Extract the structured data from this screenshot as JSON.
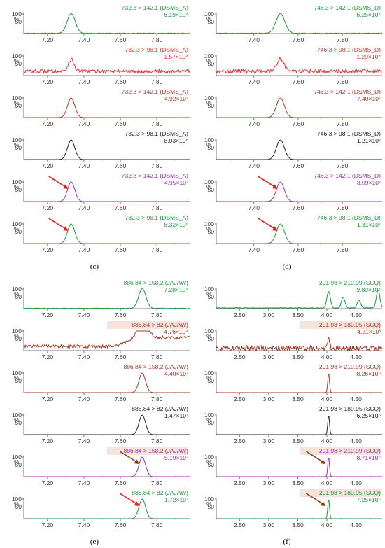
{
  "figure": {
    "panel_labels": [
      {
        "id": "c",
        "text": "(c)"
      },
      {
        "id": "d",
        "text": "(d)"
      },
      {
        "id": "e",
        "text": "(e)"
      },
      {
        "id": "f",
        "text": "(f)"
      }
    ]
  },
  "colors": {
    "green": "#1a9a3a",
    "red": "#e8312f",
    "brown": "#a23a2a",
    "black": "#222222",
    "purple": "#9c2fa8",
    "arrow_red": "#e41b1b",
    "arrow_brown": "#8a3a10",
    "highlight": "#f6e3dc"
  },
  "chart_data": [
    {
      "panel": "c",
      "type": "line",
      "trace": "peak",
      "title": "732.3 > 142.1 (DSMS_A)",
      "intensity": "6.19×10⁴",
      "color": "green",
      "x_ticks": [
        "7.20",
        "7.40",
        "7.60",
        "7.80"
      ],
      "xlim": [
        7.07,
        7.98
      ],
      "y_ticks": [
        "100",
        "50",
        "%"
      ],
      "ylim": [
        0,
        100
      ],
      "peak_rt": 7.33,
      "peak_width": 0.022,
      "noise": 3,
      "arrow": null
    },
    {
      "panel": "c",
      "type": "line",
      "trace": "noisy",
      "title": "732.3 > 98.1 (DSMS_A)",
      "intensity": "1.57×10⁴",
      "color": "red",
      "x_ticks": [
        "7.20",
        "7.40",
        "7.60",
        "7.80"
      ],
      "xlim": [
        7.07,
        7.98
      ],
      "y_ticks": [
        "100",
        "50",
        "%"
      ],
      "ylim": [
        0,
        100
      ],
      "peak_rt": 7.33,
      "peak_width": 0.016,
      "peak_height": 60,
      "baseline": 22,
      "noise": 9,
      "arrow": null
    },
    {
      "panel": "c",
      "type": "line",
      "trace": "peak",
      "title": "732.3 > 142.1 (DSMS_A)",
      "intensity": "4.92×10⁷",
      "color": "brown",
      "x_ticks": [
        "7.20",
        "7.40",
        "7.60",
        "7.80"
      ],
      "xlim": [
        7.07,
        7.98
      ],
      "y_ticks": [
        "100",
        "50",
        "%"
      ],
      "ylim": [
        0,
        100
      ],
      "peak_rt": 7.33,
      "peak_width": 0.02,
      "noise": 0,
      "arrow": null
    },
    {
      "panel": "c",
      "type": "line",
      "trace": "peak",
      "title": "732.3 > 98.1 (DSMS_A)",
      "intensity": "8.03×10⁶",
      "color": "black",
      "x_ticks": [
        "7.20",
        "7.40",
        "7.60",
        "7.80"
      ],
      "xlim": [
        7.07,
        7.98
      ],
      "y_ticks": [
        "100",
        "50",
        "%"
      ],
      "ylim": [
        0,
        100
      ],
      "peak_rt": 7.33,
      "peak_width": 0.02,
      "noise": 0,
      "arrow": null
    },
    {
      "panel": "c",
      "type": "line",
      "trace": "peak",
      "title": "732.3 > 142.1 (DSMS_A)",
      "intensity": "4.95×10⁷",
      "color": "purple",
      "x_ticks": [
        "7.20",
        "7.40",
        "7.60",
        "7.80"
      ],
      "xlim": [
        7.07,
        7.98
      ],
      "y_ticks": [
        "100",
        "50",
        "%"
      ],
      "ylim": [
        0,
        100
      ],
      "peak_rt": 7.33,
      "peak_width": 0.02,
      "noise": 0,
      "arrow": "arrow_red"
    },
    {
      "panel": "c",
      "type": "line",
      "trace": "peak",
      "title": "732.3 > 98.1 (DSMS_A)",
      "intensity": "8.32×10⁶",
      "color": "green",
      "x_ticks": [
        "7.20",
        "7.40",
        "7.60",
        "7.80"
      ],
      "xlim": [
        7.07,
        7.98
      ],
      "y_ticks": [
        "100",
        "50",
        "%"
      ],
      "ylim": [
        0,
        100
      ],
      "peak_rt": 7.33,
      "peak_width": 0.02,
      "noise": 0,
      "arrow": "arrow_red"
    },
    {
      "panel": "d",
      "type": "line",
      "trace": "peak",
      "title": "746.3 > 142.1 (DSMS_D)",
      "intensity": "6.25×10⁴",
      "color": "green",
      "x_ticks": [
        "7.40",
        "7.60",
        "7.80"
      ],
      "xlim": [
        7.23,
        7.98
      ],
      "y_ticks": [
        "100",
        "50",
        "%"
      ],
      "ylim": [
        0,
        100
      ],
      "peak_rt": 7.52,
      "peak_width": 0.02,
      "noise": 3,
      "arrow": null
    },
    {
      "panel": "d",
      "type": "line",
      "trace": "noisy",
      "title": "746.3 > 98.1 (DSMS_D)",
      "intensity": "1.29×10⁴",
      "color": "red",
      "x_ticks": [
        "7.40",
        "7.60",
        "7.80"
      ],
      "xlim": [
        7.23,
        7.98
      ],
      "y_ticks": [
        "100",
        "50",
        "%"
      ],
      "ylim": [
        0,
        100
      ],
      "peak_rt": 7.52,
      "peak_width": 0.016,
      "peak_height": 65,
      "baseline": 22,
      "noise": 9,
      "arrow": null
    },
    {
      "panel": "d",
      "type": "line",
      "trace": "peak",
      "title": "746.3 > 142.1 (DSMS_D)",
      "intensity": "7.40×10⁷",
      "color": "brown",
      "x_ticks": [
        "7.40",
        "7.60",
        "7.80"
      ],
      "xlim": [
        7.23,
        7.98
      ],
      "y_ticks": [
        "100",
        "50",
        "%"
      ],
      "ylim": [
        0,
        100
      ],
      "peak_rt": 7.52,
      "peak_width": 0.018,
      "noise": 0,
      "arrow": null
    },
    {
      "panel": "d",
      "type": "line",
      "trace": "peak",
      "title": "746.3 > 98.1 (DSMS_D)",
      "intensity": "1.21×10⁷",
      "color": "black",
      "x_ticks": [
        "7.40",
        "7.60",
        "7.80"
      ],
      "xlim": [
        7.23,
        7.98
      ],
      "y_ticks": [
        "100",
        "50",
        "%"
      ],
      "ylim": [
        0,
        100
      ],
      "peak_rt": 7.52,
      "peak_width": 0.018,
      "noise": 0,
      "arrow": null
    },
    {
      "panel": "d",
      "type": "line",
      "trace": "peak",
      "title": "746.3 > 142.1 (DSMS_D)",
      "intensity": "8.09×10⁷",
      "color": "purple",
      "x_ticks": [
        "7.40",
        "7.60",
        "7.80"
      ],
      "xlim": [
        7.23,
        7.98
      ],
      "y_ticks": [
        "100",
        "50",
        "%"
      ],
      "ylim": [
        0,
        100
      ],
      "peak_rt": 7.52,
      "peak_width": 0.018,
      "noise": 0,
      "arrow": "arrow_red"
    },
    {
      "panel": "d",
      "type": "line",
      "trace": "peak",
      "title": "746.3 > 98.1 (DSMS_D)",
      "intensity": "1.31×10⁷",
      "color": "green",
      "x_ticks": [
        "7.40",
        "7.60",
        "7.80"
      ],
      "xlim": [
        7.23,
        7.98
      ],
      "y_ticks": [
        "100",
        "50",
        "%"
      ],
      "ylim": [
        0,
        100
      ],
      "peak_rt": 7.52,
      "peak_width": 0.018,
      "noise": 0,
      "arrow": "arrow_red"
    },
    {
      "panel": "e",
      "type": "line",
      "trace": "peak",
      "title": "886.84 > 158.2 (JAJAW)",
      "intensity": "7.28×10⁴",
      "color": "green",
      "x_ticks": [
        "7.20",
        "7.40",
        "7.60",
        "7.80"
      ],
      "xlim": [
        7.07,
        7.98
      ],
      "y_ticks": [
        "100",
        "50",
        "%"
      ],
      "ylim": [
        0,
        100
      ],
      "peak_rt": 7.72,
      "peak_width": 0.02,
      "noise": 3,
      "arrow": null
    },
    {
      "panel": "e",
      "type": "line",
      "trace": "noisy",
      "title": "886.84 > 82 (JAJAW)",
      "intensity": "4.76×10⁴",
      "color": "brown",
      "x_ticks": [
        "7.20",
        "7.40",
        "7.60",
        "7.80"
      ],
      "xlim": [
        7.07,
        7.98
      ],
      "y_ticks": [
        "100",
        "50",
        "%"
      ],
      "ylim": [
        0,
        100
      ],
      "peak_rt": 7.72,
      "peak_width": 0.03,
      "peak_height": 75,
      "baseline": 22,
      "noise": 8,
      "rise": 45,
      "highlight": true,
      "arrow": null
    },
    {
      "panel": "e",
      "type": "line",
      "trace": "peak",
      "title": "886.84 > 158.2 (JAJAW)",
      "intensity": "4.40×10⁷",
      "color": "brown",
      "x_ticks": [
        "7.20",
        "7.40",
        "7.60",
        "7.80"
      ],
      "xlim": [
        7.07,
        7.98
      ],
      "y_ticks": [
        "100",
        "50",
        "%"
      ],
      "ylim": [
        0,
        100
      ],
      "peak_rt": 7.72,
      "peak_width": 0.018,
      "noise": 0,
      "arrow": null
    },
    {
      "panel": "e",
      "type": "line",
      "trace": "peak",
      "title": "886.84 > 82 (JAJAW)",
      "intensity": "1.47×10⁷",
      "color": "black",
      "x_ticks": [
        "7.20",
        "7.40",
        "7.60",
        "7.80"
      ],
      "xlim": [
        7.07,
        7.98
      ],
      "y_ticks": [
        "100",
        "50",
        "%"
      ],
      "ylim": [
        0,
        100
      ],
      "peak_rt": 7.72,
      "peak_width": 0.018,
      "noise": 0,
      "arrow": null
    },
    {
      "panel": "e",
      "type": "line",
      "trace": "peak",
      "title": "886.84 > 158.2 (JAJAW)",
      "intensity": "5.19×10⁷",
      "color": "purple",
      "x_ticks": [
        "7.20",
        "7.40",
        "7.60",
        "7.80"
      ],
      "xlim": [
        7.07,
        7.98
      ],
      "y_ticks": [
        "100",
        "50",
        "%"
      ],
      "ylim": [
        0,
        100
      ],
      "peak_rt": 7.72,
      "peak_width": 0.018,
      "noise": 0,
      "highlight": true,
      "arrow": "arrow_brown"
    },
    {
      "panel": "e",
      "type": "line",
      "trace": "peak",
      "title": "886.84 > 82 (JAJAW)",
      "intensity": "1.72×10⁷",
      "color": "green",
      "x_ticks": [
        "7.20",
        "7.40",
        "7.60",
        "7.80"
      ],
      "xlim": [
        7.07,
        7.98
      ],
      "y_ticks": [
        "100",
        "50",
        "%"
      ],
      "ylim": [
        0,
        100
      ],
      "peak_rt": 7.72,
      "peak_width": 0.018,
      "noise": 0,
      "arrow": "arrow_red"
    },
    {
      "panel": "f",
      "type": "line",
      "trace": "multi",
      "title": "291.98 > 210.99 (SCQ)",
      "intensity": "9.80×10⁴",
      "color": "green",
      "x_ticks": [
        "2.50",
        "3.00",
        "3.50",
        "4.00",
        "4.50"
      ],
      "xlim": [
        2.1,
        4.95
      ],
      "y_ticks": [
        "100",
        "50",
        "%"
      ],
      "ylim": [
        0,
        100
      ],
      "peaks": [
        [
          4.03,
          0.03,
          85
        ],
        [
          4.28,
          0.03,
          55
        ],
        [
          4.55,
          0.03,
          40
        ],
        [
          4.88,
          0.03,
          92
        ]
      ],
      "noise": 3,
      "arrow": null
    },
    {
      "panel": "f",
      "type": "line",
      "trace": "noisy",
      "title": "291.98 > 180.95 (SCQ)",
      "intensity": "4.21×10³",
      "color": "brown",
      "x_ticks": [
        "2.50",
        "3.00",
        "3.50",
        "4.00",
        "4.50"
      ],
      "xlim": [
        2.1,
        4.95
      ],
      "y_ticks": [
        "100",
        "50",
        "%"
      ],
      "ylim": [
        0,
        100
      ],
      "peak_rt": 4.03,
      "peak_width": 0.02,
      "peak_height": 55,
      "baseline": 12,
      "noise": 14,
      "highlight": true,
      "arrow": null
    },
    {
      "panel": "f",
      "type": "line",
      "trace": "peak",
      "title": "291.98 > 210.99 (SCQ)",
      "intensity": "8.26×10⁶",
      "color": "brown",
      "x_ticks": [
        "2.50",
        "3.00",
        "3.50",
        "4.00",
        "4.50"
      ],
      "xlim": [
        2.1,
        4.95
      ],
      "y_ticks": [
        "100",
        "50",
        "%"
      ],
      "ylim": [
        0,
        100
      ],
      "peak_rt": 4.03,
      "peak_width": 0.015,
      "noise": 0,
      "arrow": null
    },
    {
      "panel": "f",
      "type": "line",
      "trace": "peak",
      "title": "291.98 > 180.95 (SCQ)",
      "intensity": "6.25×10⁶",
      "color": "black",
      "x_ticks": [
        "2.50",
        "3.00",
        "3.50",
        "4.00",
        "4.50"
      ],
      "xlim": [
        2.1,
        4.95
      ],
      "y_ticks": [
        "100",
        "50",
        "%"
      ],
      "ylim": [
        0,
        100
      ],
      "peak_rt": 4.03,
      "peak_width": 0.015,
      "noise": 0,
      "arrow": null
    },
    {
      "panel": "f",
      "type": "line",
      "trace": "peak",
      "title": "291.98 > 210.99 (SCQ)",
      "intensity": "8.71×10⁶",
      "color": "purple",
      "x_ticks": [
        "2.50",
        "3.00",
        "3.50",
        "4.00",
        "4.50"
      ],
      "xlim": [
        2.1,
        4.95
      ],
      "y_ticks": [
        "100",
        "50",
        "%"
      ],
      "ylim": [
        0,
        100
      ],
      "peak_rt": 4.03,
      "peak_width": 0.015,
      "noise": 0,
      "highlight": true,
      "arrow": "arrow_brown"
    },
    {
      "panel": "f",
      "type": "line",
      "trace": "peak",
      "title": "291.98 > 180.95 (SCQ)",
      "intensity": "7.25×10⁶",
      "color": "green",
      "x_ticks": [
        "2.50",
        "3.00",
        "3.50",
        "4.00",
        "4.50"
      ],
      "xlim": [
        2.1,
        4.95
      ],
      "y_ticks": [
        "100",
        "50",
        "%"
      ],
      "ylim": [
        0,
        100
      ],
      "peak_rt": 4.03,
      "peak_width": 0.015,
      "noise": 0,
      "highlight": true,
      "arrow": "arrow_brown"
    }
  ]
}
